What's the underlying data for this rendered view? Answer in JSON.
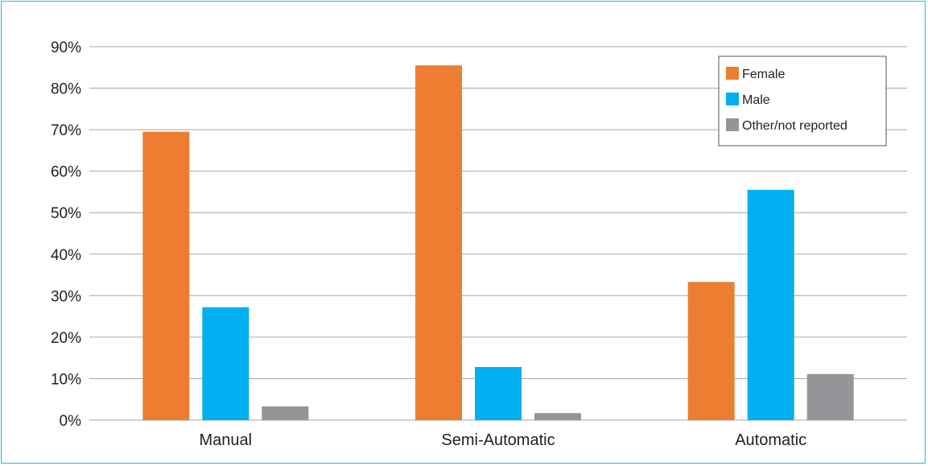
{
  "chart_data": {
    "type": "bar",
    "categories": [
      "Manual",
      "Semi-Automatic",
      "Automatic"
    ],
    "series": [
      {
        "name": "Female",
        "color": "#ed7d31",
        "values": [
          69.5,
          85.5,
          33.3
        ]
      },
      {
        "name": "Male",
        "color": "#00b0f0",
        "values": [
          27.2,
          12.8,
          55.5
        ]
      },
      {
        "name": "Other/not reported",
        "color": "#939598",
        "values": [
          3.3,
          1.7,
          11.1
        ]
      }
    ],
    "yticks": [
      "0%",
      "10%",
      "20%",
      "30%",
      "40%",
      "50%",
      "60%",
      "70%",
      "80%",
      "90%"
    ],
    "ylim": [
      0,
      90
    ],
    "grid": true,
    "legend_position": "top-right",
    "frame_color": "#29b6e6",
    "grid_color": "#a6a6a6"
  }
}
